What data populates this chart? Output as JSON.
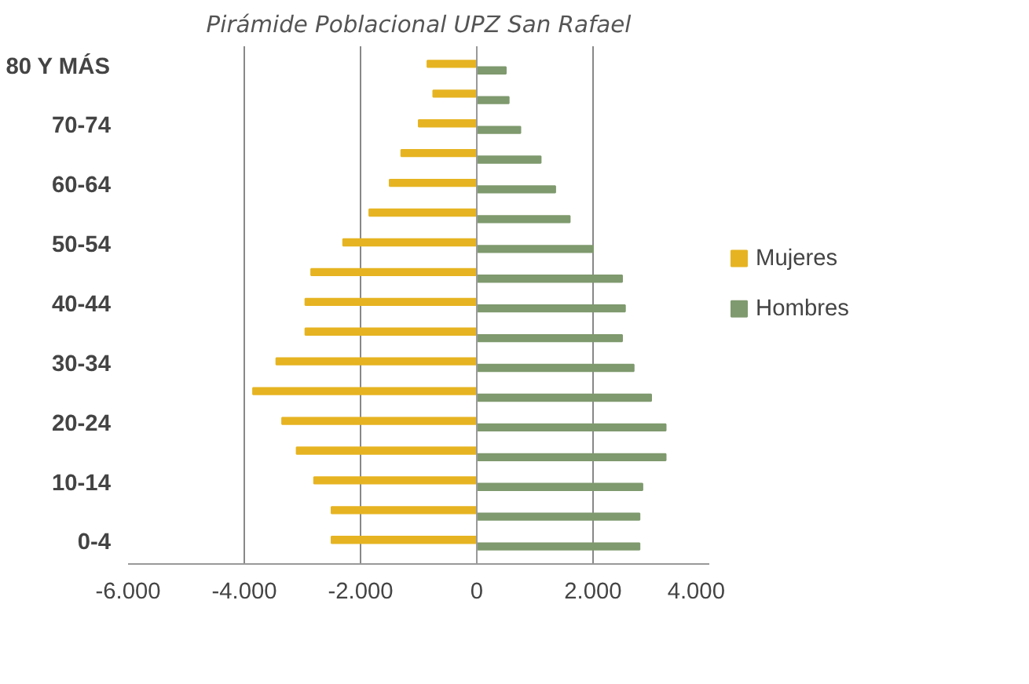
{
  "chart_data": {
    "type": "bar",
    "orientation": "horizontal",
    "title": "Pirámide Poblacional UPZ San Rafael",
    "categories": [
      "80 Y MÁS",
      null,
      "70-74",
      null,
      "60-64",
      null,
      "50-54",
      null,
      "40-44",
      null,
      "30-34",
      null,
      "20-24",
      null,
      "10-14",
      null,
      "0-4"
    ],
    "series": [
      {
        "name": "Mujeres",
        "color": "#e6b422",
        "values": [
          -850,
          -750,
          -1000,
          -1300,
          -1500,
          -1850,
          -2300,
          -2850,
          -2950,
          -2950,
          -3450,
          -3850,
          -3350,
          -3100,
          -2800,
          -2500,
          -2500
        ]
      },
      {
        "name": "Hombres",
        "color": "#7f9a6e",
        "values": [
          500,
          550,
          750,
          1100,
          1350,
          1600,
          2000,
          2500,
          2550,
          2500,
          2700,
          3000,
          3250,
          3250,
          2850,
          2800,
          2800
        ]
      }
    ],
    "xlim": [
      -6000,
      4000
    ],
    "xticks": [
      {
        "value": -6000,
        "label": "-6.000"
      },
      {
        "value": -4000,
        "label": "-4.000"
      },
      {
        "value": -2000,
        "label": "-2.000"
      },
      0,
      {
        "value": 2000,
        "label": "2.000"
      },
      {
        "value": 4000,
        "label": "4.000"
      }
    ],
    "grid": "x",
    "legend": "right"
  }
}
